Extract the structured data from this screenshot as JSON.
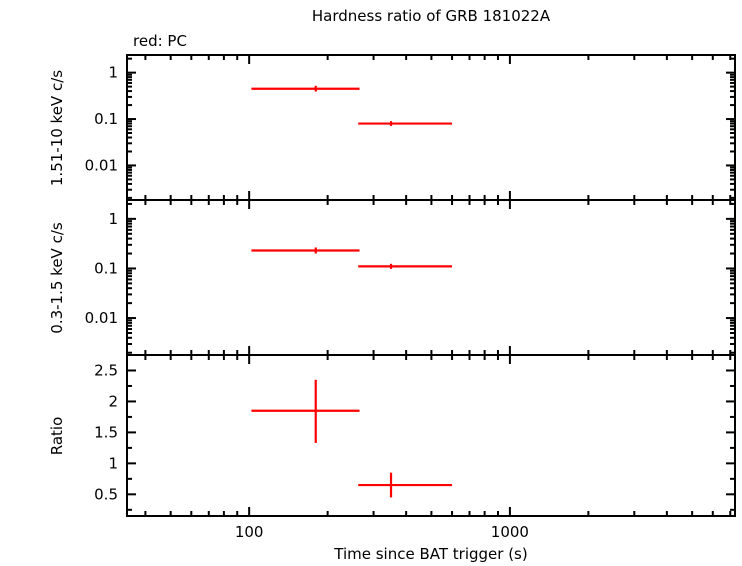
{
  "colors": {
    "axis": "#000000",
    "data": "#ff0000",
    "annotation": "#ff0000",
    "background": "#ffffff"
  },
  "chart_data": {
    "type": "scatter",
    "title": "Hardness ratio of GRB 181022A",
    "legend": "red: PC",
    "xlabel": "Time since BAT trigger (s)",
    "x_scale": "log",
    "xlim": [
      34,
      7300
    ],
    "x_ticks": [
      {
        "v": 100,
        "label": "100"
      },
      {
        "v": 1000,
        "label": "1000"
      }
    ],
    "x_minor_ticks": [
      40,
      50,
      60,
      70,
      80,
      90,
      200,
      300,
      400,
      500,
      600,
      700,
      800,
      900,
      2000,
      3000,
      4000,
      5000,
      6000,
      7000
    ],
    "panels": [
      {
        "name": "hard-rate",
        "ylabel": "1.51-10 keV c/s",
        "y_scale": "log",
        "ylim": [
          0.0018,
          2.4
        ],
        "y_ticks": [
          {
            "v": 1,
            "label": "1"
          },
          {
            "v": 0.1,
            "label": "0.1"
          },
          {
            "v": 0.01,
            "label": "0.01"
          }
        ],
        "points": [
          {
            "x": 180,
            "x_lo": 102,
            "x_hi": 265,
            "y": 0.45,
            "y_lo": 0.39,
            "y_hi": 0.52
          },
          {
            "x": 350,
            "x_lo": 262,
            "x_hi": 600,
            "y": 0.08,
            "y_lo": 0.071,
            "y_hi": 0.09
          }
        ]
      },
      {
        "name": "soft-rate",
        "ylabel": "0.3-1.5 keV c/s",
        "y_scale": "log",
        "ylim": [
          0.0018,
          2.4
        ],
        "y_ticks": [
          {
            "v": 1,
            "label": "1"
          },
          {
            "v": 0.1,
            "label": "0.1"
          },
          {
            "v": 0.01,
            "label": "0.01"
          }
        ],
        "points": [
          {
            "x": 180,
            "x_lo": 102,
            "x_hi": 265,
            "y": 0.23,
            "y_lo": 0.2,
            "y_hi": 0.265
          },
          {
            "x": 350,
            "x_lo": 262,
            "x_hi": 600,
            "y": 0.11,
            "y_lo": 0.098,
            "y_hi": 0.124
          }
        ]
      },
      {
        "name": "ratio",
        "ylabel": "Ratio",
        "y_scale": "linear",
        "ylim": [
          0.15,
          2.75
        ],
        "y_minor_step": 0.25,
        "y_ticks": [
          {
            "v": 0.5,
            "label": "0.5"
          },
          {
            "v": 1,
            "label": "1"
          },
          {
            "v": 1.5,
            "label": "1.5"
          },
          {
            "v": 2,
            "label": "2"
          },
          {
            "v": 2.5,
            "label": "2.5"
          }
        ],
        "points": [
          {
            "x": 180,
            "x_lo": 102,
            "x_hi": 265,
            "y": 1.85,
            "y_lo": 1.33,
            "y_hi": 2.35
          },
          {
            "x": 350,
            "x_lo": 262,
            "x_hi": 600,
            "y": 0.65,
            "y_lo": 0.45,
            "y_hi": 0.85
          }
        ]
      }
    ]
  }
}
